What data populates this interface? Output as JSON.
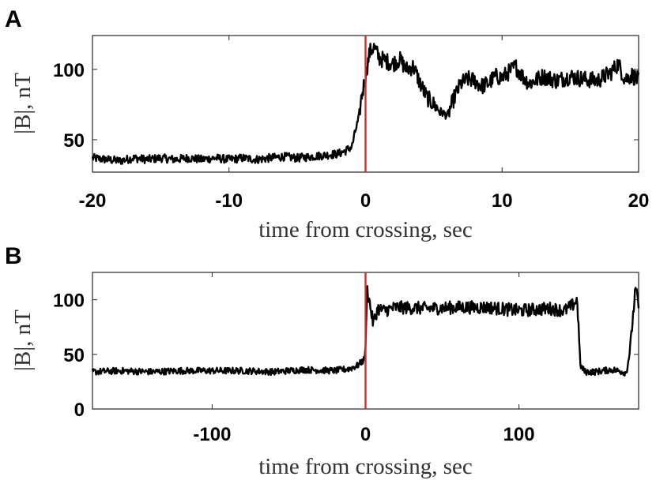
{
  "chart_data": [
    {
      "panel": "A",
      "type": "line",
      "xlabel": "time from crossing, sec",
      "ylabel": "|B|, nT",
      "xlim": [
        -20,
        20
      ],
      "ylim": [
        27,
        124
      ],
      "xticks": [
        -20,
        -10,
        0,
        10,
        20
      ],
      "xtick_labels": [
        "-20",
        "-10",
        "0",
        "10",
        "20"
      ],
      "yticks": [
        50,
        100
      ],
      "ytick_labels": [
        "50",
        "100"
      ],
      "grid": false,
      "marker_line": {
        "x": 0,
        "color": "#e0252a"
      },
      "series": [
        {
          "x": [
            -20,
            -19,
            -18,
            -17,
            -16,
            -15,
            -14,
            -13,
            -12,
            -11,
            -10,
            -9,
            -8,
            -7,
            -6,
            -5,
            -4,
            -3,
            -2,
            -1.5,
            -1,
            -0.7,
            -0.5,
            -0.3,
            0,
            0.3,
            0.6,
            1,
            1.5,
            2,
            2.5,
            3,
            3.5,
            4,
            4.5,
            5,
            5.5,
            6,
            6.5,
            7,
            7.5,
            8,
            8.5,
            9,
            9.5,
            10,
            10.5,
            11,
            11.5,
            12,
            13,
            14,
            15,
            16,
            17,
            18,
            18.5,
            19,
            19.5,
            20
          ],
          "y": [
            37,
            36,
            35,
            37,
            36,
            37,
            36,
            37,
            36,
            37,
            36,
            37,
            36,
            37,
            38,
            37,
            38,
            39,
            40,
            42,
            45,
            58,
            65,
            80,
            95,
            112,
            116,
            108,
            106,
            104,
            107,
            100,
            102,
            90,
            80,
            75,
            70,
            67,
            80,
            90,
            93,
            92,
            88,
            90,
            95,
            94,
            98,
            102,
            95,
            90,
            95,
            92,
            95,
            93,
            92,
            98,
            104,
            93,
            96,
            92
          ],
          "color": "#000000"
        }
      ]
    },
    {
      "panel": "B",
      "type": "line",
      "xlabel": "time from crossing, sec",
      "ylabel": "|B|, nT",
      "xlim": [
        -178,
        178
      ],
      "ylim": [
        0,
        125
      ],
      "xticks": [
        -100,
        0,
        100
      ],
      "xtick_labels": [
        "-100",
        "0",
        "100"
      ],
      "yticks": [
        0,
        50,
        100
      ],
      "ytick_labels": [
        "0",
        "50",
        "100"
      ],
      "grid": false,
      "marker_line": {
        "x": 0,
        "color": "#e0252a"
      },
      "series": [
        {
          "x": [
            -178,
            -160,
            -140,
            -120,
            -100,
            -80,
            -60,
            -40,
            -20,
            -10,
            -5,
            -1,
            0,
            1,
            3,
            5,
            8,
            12,
            20,
            40,
            60,
            80,
            100,
            120,
            130,
            135,
            138,
            140,
            143,
            150,
            160,
            165,
            170,
            172,
            174,
            176,
            178
          ],
          "y": [
            34,
            35,
            34,
            35,
            35,
            35,
            34,
            36,
            35,
            37,
            40,
            45,
            55,
            110,
            95,
            78,
            92,
            90,
            93,
            92,
            93,
            93,
            90,
            92,
            90,
            95,
            100,
            40,
            34,
            34,
            36,
            35,
            33,
            50,
            80,
            110,
            95
          ],
          "color": "#000000"
        }
      ]
    }
  ]
}
